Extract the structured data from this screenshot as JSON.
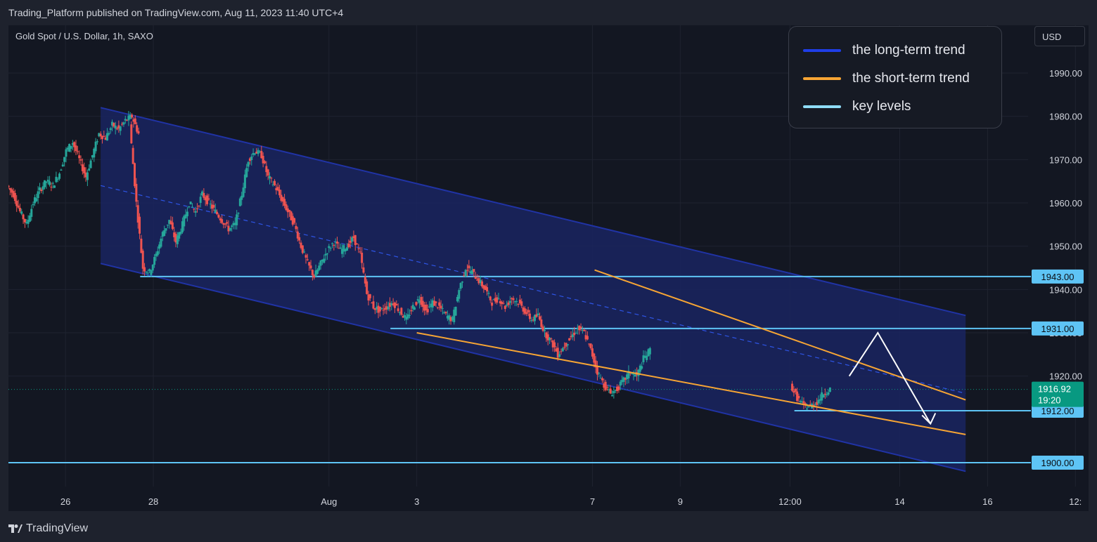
{
  "header": {
    "published": "Trading_Platform published on TradingView.com, Aug 11, 2023 11:40 UTC+4"
  },
  "symbol_info": "Gold Spot / U.S. Dollar, 1h, SAXO",
  "currency": "USD",
  "legend": [
    {
      "label": "the long-term trend",
      "color": "#1f3ee8"
    },
    {
      "label": "the short-term trend",
      "color": "#f7a534"
    },
    {
      "label": "key levels",
      "color": "#8fdcf7"
    }
  ],
  "footer": {
    "logo_text": "TradingView"
  },
  "colors": {
    "up": "#26a69a",
    "down": "#ef5350",
    "channel_line": "#2033a5",
    "channel_fill": "#1a2460",
    "key_level": "#5ec4f5",
    "key_label_bg": "#5ec4f5",
    "short_trend": "#f7a534",
    "current_price_bg": "#089981",
    "arrow": "#ffffff"
  },
  "chart_data": {
    "type": "candlestick",
    "ylim": [
      1890,
      2000
    ],
    "x_ticks": [
      "26",
      "28",
      "Aug",
      "3",
      "7",
      "9",
      "12:00",
      "14",
      "16",
      "12:"
    ],
    "y_ticks": [
      "1920.00",
      "1930.00",
      "1940.00",
      "1950.00",
      "1960.00",
      "1970.00",
      "1980.00",
      "1990.00"
    ],
    "x_tick_days": [
      -6,
      -4,
      0,
      2,
      6,
      8,
      10.5,
      13,
      15,
      17
    ],
    "x_domain_days": [
      -7.3,
      17.3
    ],
    "key_levels": [
      {
        "price": 1943.0,
        "label": "1943.00",
        "start_day": -4.3
      },
      {
        "price": 1931.0,
        "label": "1931.00",
        "start_day": 1.4
      },
      {
        "price": 1912.0,
        "label": "1912.00",
        "start_day": 10.6
      },
      {
        "price": 1900.0,
        "label": "1900.00",
        "start_day": -7.3
      }
    ],
    "current_price": {
      "price": 1916.92,
      "label": "1916.92",
      "countdown": "19:20"
    },
    "long_term_channel": {
      "upper": [
        {
          "day": -5.2,
          "price": 1982
        },
        {
          "day": 14.5,
          "price": 1934
        }
      ],
      "mid": [
        {
          "day": -5.2,
          "price": 1964
        },
        {
          "day": 14.5,
          "price": 1916
        }
      ],
      "lower": [
        {
          "day": -5.2,
          "price": 1946
        },
        {
          "day": 14.5,
          "price": 1898
        }
      ]
    },
    "short_term_trend": {
      "upper": [
        {
          "day": 6.05,
          "price": 1944.5
        },
        {
          "day": 14.5,
          "price": 1914.5
        }
      ],
      "lower": [
        {
          "day": 2.0,
          "price": 1930.0
        },
        {
          "day": 14.5,
          "price": 1906.5
        }
      ]
    },
    "projection_arrow": [
      {
        "day": 11.85,
        "price": 1920.0
      },
      {
        "day": 12.5,
        "price": 1930.0
      },
      {
        "day": 13.7,
        "price": 1909.0
      }
    ],
    "segments": [
      {
        "start_day": -7.3,
        "prices": [
          1964,
          1962,
          1958,
          1955,
          1960,
          1963,
          1965,
          1964,
          1967,
          1972,
          1974,
          1970,
          1966,
          1971,
          1976,
          1975,
          1978,
          1977,
          1979,
          1980,
          1976
        ]
      },
      {
        "start_day": -4.5,
        "prices": [
          1978,
          1960,
          1945,
          1944,
          1948,
          1953,
          1956,
          1951,
          1955,
          1960,
          1958,
          1962,
          1960,
          1958,
          1956,
          1954,
          1955,
          1962,
          1970,
          1972,
          1971,
          1966,
          1964,
          1961,
          1958,
          1955,
          1950,
          1946,
          1943,
          1946,
          1949,
          1951,
          1949,
          1950,
          1952,
          1948,
          1939,
          1936,
          1935,
          1936,
          1937,
          1935,
          1933,
          1936,
          1938,
          1935,
          1937,
          1936,
          1934,
          1933,
          1940,
          1945,
          1944,
          1942,
          1940,
          1937,
          1938,
          1936,
          1938,
          1937,
          1935,
          1933,
          1934,
          1930,
          1928,
          1925,
          1927,
          1929,
          1931,
          1930,
          1926,
          1921,
          1918,
          1916,
          1917,
          1919,
          1921,
          1920,
          1924,
          1926
        ]
      },
      {
        "start_day": 10.55,
        "prices": [
          1918,
          1915,
          1913,
          1913,
          1914,
          1916,
          1917
        ]
      }
    ]
  }
}
